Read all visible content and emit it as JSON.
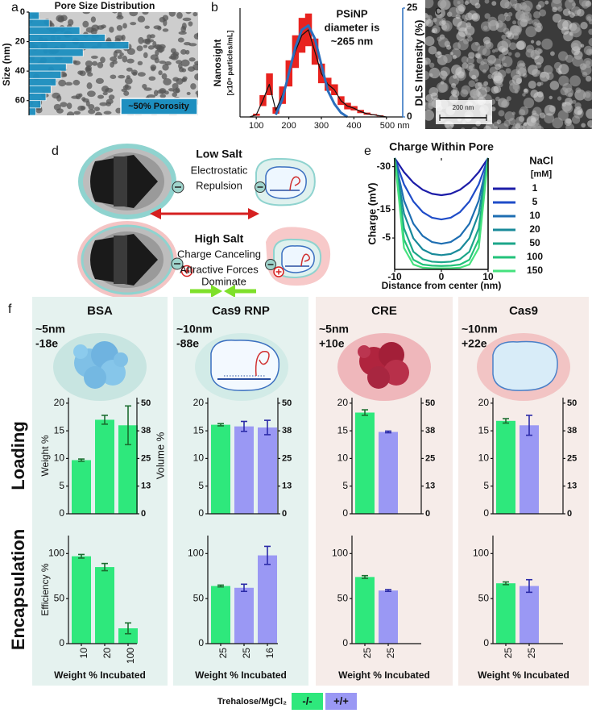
{
  "panel_labels": [
    "a",
    "b",
    "c",
    "d",
    "e",
    "f"
  ],
  "chart_data": [
    {
      "type": "histogram",
      "orientation": "horizontal",
      "title": "Pore Size Distribution",
      "ylabel": "Size (nm)",
      "bins": [
        0,
        5,
        10,
        15,
        20,
        25,
        30,
        35,
        40,
        45,
        50,
        55,
        60,
        65,
        70
      ],
      "values": [
        6,
        12,
        30,
        45,
        59,
        32,
        26,
        22,
        19,
        16,
        13,
        10,
        7,
        4
      ],
      "color": "#1d8fc0",
      "xlim": [
        0,
        100
      ],
      "ylim": [
        70,
        0
      ],
      "yticks": [
        0,
        20,
        40,
        60
      ],
      "annotation": "~50% Porosity"
    },
    {
      "type": "line",
      "ylabel": [
        "Nanosight",
        "[x10⁸ particles/mL]"
      ],
      "y2label": "DLS Intensity (%)",
      "annotation": [
        "PSiNP",
        "diameter is",
        "~265 nm"
      ],
      "xlim": [
        50,
        550
      ],
      "xticks": [
        100,
        200,
        300,
        400,
        {
          "value": 500,
          "label": "500 nm"
        }
      ],
      "ylim": [
        0,
        10
      ],
      "y2lim": [
        0,
        25
      ],
      "y2ticks": [
        0,
        25
      ],
      "series": [
        {
          "color": "#111111",
          "band_color": "#e8231f",
          "x": [
            80,
            100,
            120,
            140,
            160,
            180,
            200,
            220,
            240,
            260,
            280,
            300,
            320,
            340,
            360,
            380,
            400,
            420,
            440,
            460,
            480,
            500
          ],
          "values": [
            0,
            0.2,
            1.5,
            3,
            0.6,
            2,
            4,
            6,
            7.5,
            8,
            6,
            4,
            3,
            2.5,
            1.5,
            1,
            0.8,
            0.5,
            0.3,
            0.2,
            0.1,
            0
          ],
          "errors": [
            0,
            0.1,
            0.5,
            1,
            0.3,
            0.8,
            1.2,
            1.5,
            1.6,
            1.5,
            1.2,
            0.9,
            0.6,
            0.5,
            0.4,
            0.3,
            0.2,
            0.15,
            0.1,
            0.05,
            0.05,
            0
          ]
        },
        {
          "color": "#2a6ebd",
          "axis": "y2",
          "x": [
            160,
            180,
            200,
            220,
            240,
            260,
            280,
            300,
            320,
            340,
            360,
            380
          ],
          "values": [
            0.5,
            4,
            10,
            16,
            20,
            21,
            18,
            12,
            6,
            3,
            1,
            0
          ]
        }
      ]
    },
    {
      "type": "line",
      "title": "Charge Within Pore",
      "xlabel": "Distance from center (nm)",
      "ylabel": "Charge (mV)",
      "legend_title": [
        "NaCl",
        "[mM]"
      ],
      "x": [
        -10,
        -8,
        -6,
        -4,
        -2,
        0,
        2,
        4,
        6,
        8,
        10
      ],
      "xlim": [
        -10,
        10
      ],
      "xticks": [
        -10,
        0,
        10
      ],
      "ylim": [
        6,
        -33
      ],
      "yticks": [
        -30,
        -15,
        -5
      ],
      "series": [
        {
          "name": "1",
          "color": "#1c1ca8",
          "values": [
            -33,
            -28.1,
            -24.4,
            -21.9,
            -20.5,
            -20,
            -20.5,
            -21.9,
            -24.4,
            -28.1,
            -33
          ]
        },
        {
          "name": "5",
          "color": "#1f4cc8",
          "values": [
            -33,
            -23.8,
            -17.8,
            -14.1,
            -12.1,
            -11.5,
            -12.1,
            -14.1,
            -17.8,
            -23.8,
            -33
          ]
        },
        {
          "name": "10",
          "color": "#1e6eb2",
          "values": [
            -33,
            -18.1,
            -10,
            -5.7,
            -3.6,
            -3,
            -3.6,
            -5.7,
            -10,
            -18.1,
            -33
          ]
        },
        {
          "name": "20",
          "color": "#198a9a",
          "values": [
            -33,
            -13.6,
            -4.9,
            -1,
            0.6,
            1,
            0.6,
            -1,
            -4.9,
            -13.6,
            -33
          ]
        },
        {
          "name": "50",
          "color": "#1ca68a",
          "values": [
            -33,
            -8.4,
            -0.2,
            2.4,
            3.3,
            3.5,
            3.3,
            2.4,
            -0.2,
            -8.4,
            -33
          ]
        },
        {
          "name": "100",
          "color": "#22c27a",
          "values": [
            -33,
            -4.5,
            2.6,
            4.3,
            4.7,
            4.8,
            4.7,
            4.3,
            2.6,
            -4.5,
            -33
          ]
        },
        {
          "name": "150",
          "color": "#45e27e",
          "values": [
            -33,
            -1.5,
            4.3,
            5.4,
            5.6,
            5.6,
            5.6,
            5.4,
            4.3,
            -1.5,
            -33
          ]
        }
      ]
    },
    {
      "type": "bar",
      "ylabel": "Weight %",
      "y2label": "Volume %",
      "values": [
        9.7,
        17,
        16
      ],
      "errors": [
        0.2,
        0.8,
        3.5
      ],
      "colors": [
        "#2ee87c",
        "#2ee87c",
        "#2ee87c"
      ],
      "error_colors": [
        "#1b6e30",
        "#1b6e30",
        "#1b6e30"
      ],
      "ylim": [
        0,
        21
      ],
      "yticks": [
        0,
        5,
        10,
        15,
        20
      ],
      "y2lim": [
        0,
        52.5
      ],
      "y2ticks": [
        0,
        {
          "value": 12.5,
          "label": "13"
        },
        25,
        {
          "value": 37.5,
          "label": "38"
        },
        50
      ]
    },
    {
      "type": "bar",
      "values": [
        16.1,
        15.8,
        15.6
      ],
      "errors": [
        0.2,
        0.9,
        1.3
      ],
      "colors": [
        "#2ee87c",
        "#9a98f4",
        "#9a98f4"
      ],
      "error_colors": [
        "#1b6e30",
        "#2b2ba8",
        "#2b2ba8"
      ],
      "ylim": [
        0,
        21
      ],
      "yticks": [
        0,
        5,
        10,
        15,
        20
      ],
      "y2lim": [
        0,
        52.5
      ],
      "y2ticks": [
        0,
        {
          "value": 12.5,
          "label": "13"
        },
        25,
        {
          "value": 37.5,
          "label": "38"
        },
        50
      ]
    },
    {
      "type": "bar",
      "values": [
        18.3,
        14.8
      ],
      "errors": [
        0.5,
        0.15
      ],
      "colors": [
        "#2ee87c",
        "#9a98f4"
      ],
      "error_colors": [
        "#1b6e30",
        "#2b2ba8"
      ],
      "ylim": [
        0,
        21
      ],
      "yticks": [
        0,
        5,
        10,
        15,
        20
      ],
      "y2lim": [
        0,
        52.5
      ],
      "y2ticks": [
        0,
        {
          "value": 12.5,
          "label": "13"
        },
        25,
        {
          "value": 37.5,
          "label": "38"
        },
        50
      ]
    },
    {
      "type": "bar",
      "values": [
        16.8,
        16
      ],
      "errors": [
        0.4,
        1.8
      ],
      "colors": [
        "#2ee87c",
        "#9a98f4"
      ],
      "error_colors": [
        "#1b6e30",
        "#2b2ba8"
      ],
      "ylim": [
        0,
        21
      ],
      "yticks": [
        0,
        5,
        10,
        15,
        20
      ],
      "y2lim": [
        0,
        52.5
      ],
      "y2ticks": [
        0,
        {
          "value": 12.5,
          "label": "13"
        },
        25,
        {
          "value": 37.5,
          "label": "38"
        },
        50
      ]
    },
    {
      "type": "bar",
      "ylabel": "Efficiency %",
      "xlabel": "Weight % Incubated",
      "categories": [
        "10",
        "20",
        "100"
      ],
      "values": [
        97,
        85,
        17
      ],
      "errors": [
        2,
        4,
        6
      ],
      "colors": [
        "#2ee87c",
        "#2ee87c",
        "#2ee87c"
      ],
      "error_colors": [
        "#1b6e30",
        "#1b6e30",
        "#1b6e30"
      ],
      "ylim": [
        0,
        120
      ],
      "yticks": [
        0,
        50,
        100
      ]
    },
    {
      "type": "bar",
      "xlabel": "Weight % Incubated",
      "categories": [
        "25",
        "25",
        "16"
      ],
      "values": [
        64,
        62,
        98
      ],
      "errors": [
        1,
        4,
        10
      ],
      "colors": [
        "#2ee87c",
        "#9a98f4",
        "#9a98f4"
      ],
      "error_colors": [
        "#1b6e30",
        "#2b2ba8",
        "#2b2ba8"
      ],
      "ylim": [
        0,
        120
      ],
      "yticks": [
        0,
        50,
        100
      ]
    },
    {
      "type": "bar",
      "xlabel": "Weight % Incubated",
      "categories": [
        "25",
        "25"
      ],
      "values": [
        74,
        59
      ],
      "errors": [
        1.5,
        1
      ],
      "colors": [
        "#2ee87c",
        "#9a98f4"
      ],
      "error_colors": [
        "#1b6e30",
        "#2b2ba8"
      ],
      "ylim": [
        0,
        120
      ],
      "yticks": [
        0,
        50,
        100
      ]
    },
    {
      "type": "bar",
      "xlabel": "Weight % Incubated",
      "categories": [
        "25",
        "25"
      ],
      "values": [
        67,
        64
      ],
      "errors": [
        1.5,
        7
      ],
      "colors": [
        "#2ee87c",
        "#9a98f4"
      ],
      "error_colors": [
        "#1b6e30",
        "#2b2ba8"
      ],
      "ylim": [
        0,
        120
      ],
      "yticks": [
        0,
        50,
        100
      ]
    }
  ],
  "image_c": {
    "scale_bar": "200 nm"
  },
  "diagram_d": {
    "low_salt": {
      "title": "Low Salt",
      "lines": [
        "Electrostatic",
        "Repulsion"
      ]
    },
    "high_salt": {
      "title": "High Salt",
      "lines": [
        "Charge Canceling",
        "Attractive Forces",
        "Dominate"
      ]
    }
  },
  "panel_f": {
    "proteins": [
      {
        "name": "BSA",
        "size": "~5nm",
        "charge": "-18e"
      },
      {
        "name": "Cas9 RNP",
        "size": "~10nm",
        "charge": "-88e"
      },
      {
        "name": "CRE",
        "size": "~5nm",
        "charge": "+10e"
      },
      {
        "name": "Cas9",
        "size": "~10nm",
        "charge": "+22e"
      }
    ],
    "row_labels": [
      "Loading",
      "Encapsulation"
    ],
    "legend": {
      "title": "Trehalose/MgCl₂",
      "items": [
        {
          "label": "-/-",
          "color": "#2ee87c"
        },
        {
          "label": "+/+",
          "color": "#9a98f4"
        }
      ]
    }
  }
}
